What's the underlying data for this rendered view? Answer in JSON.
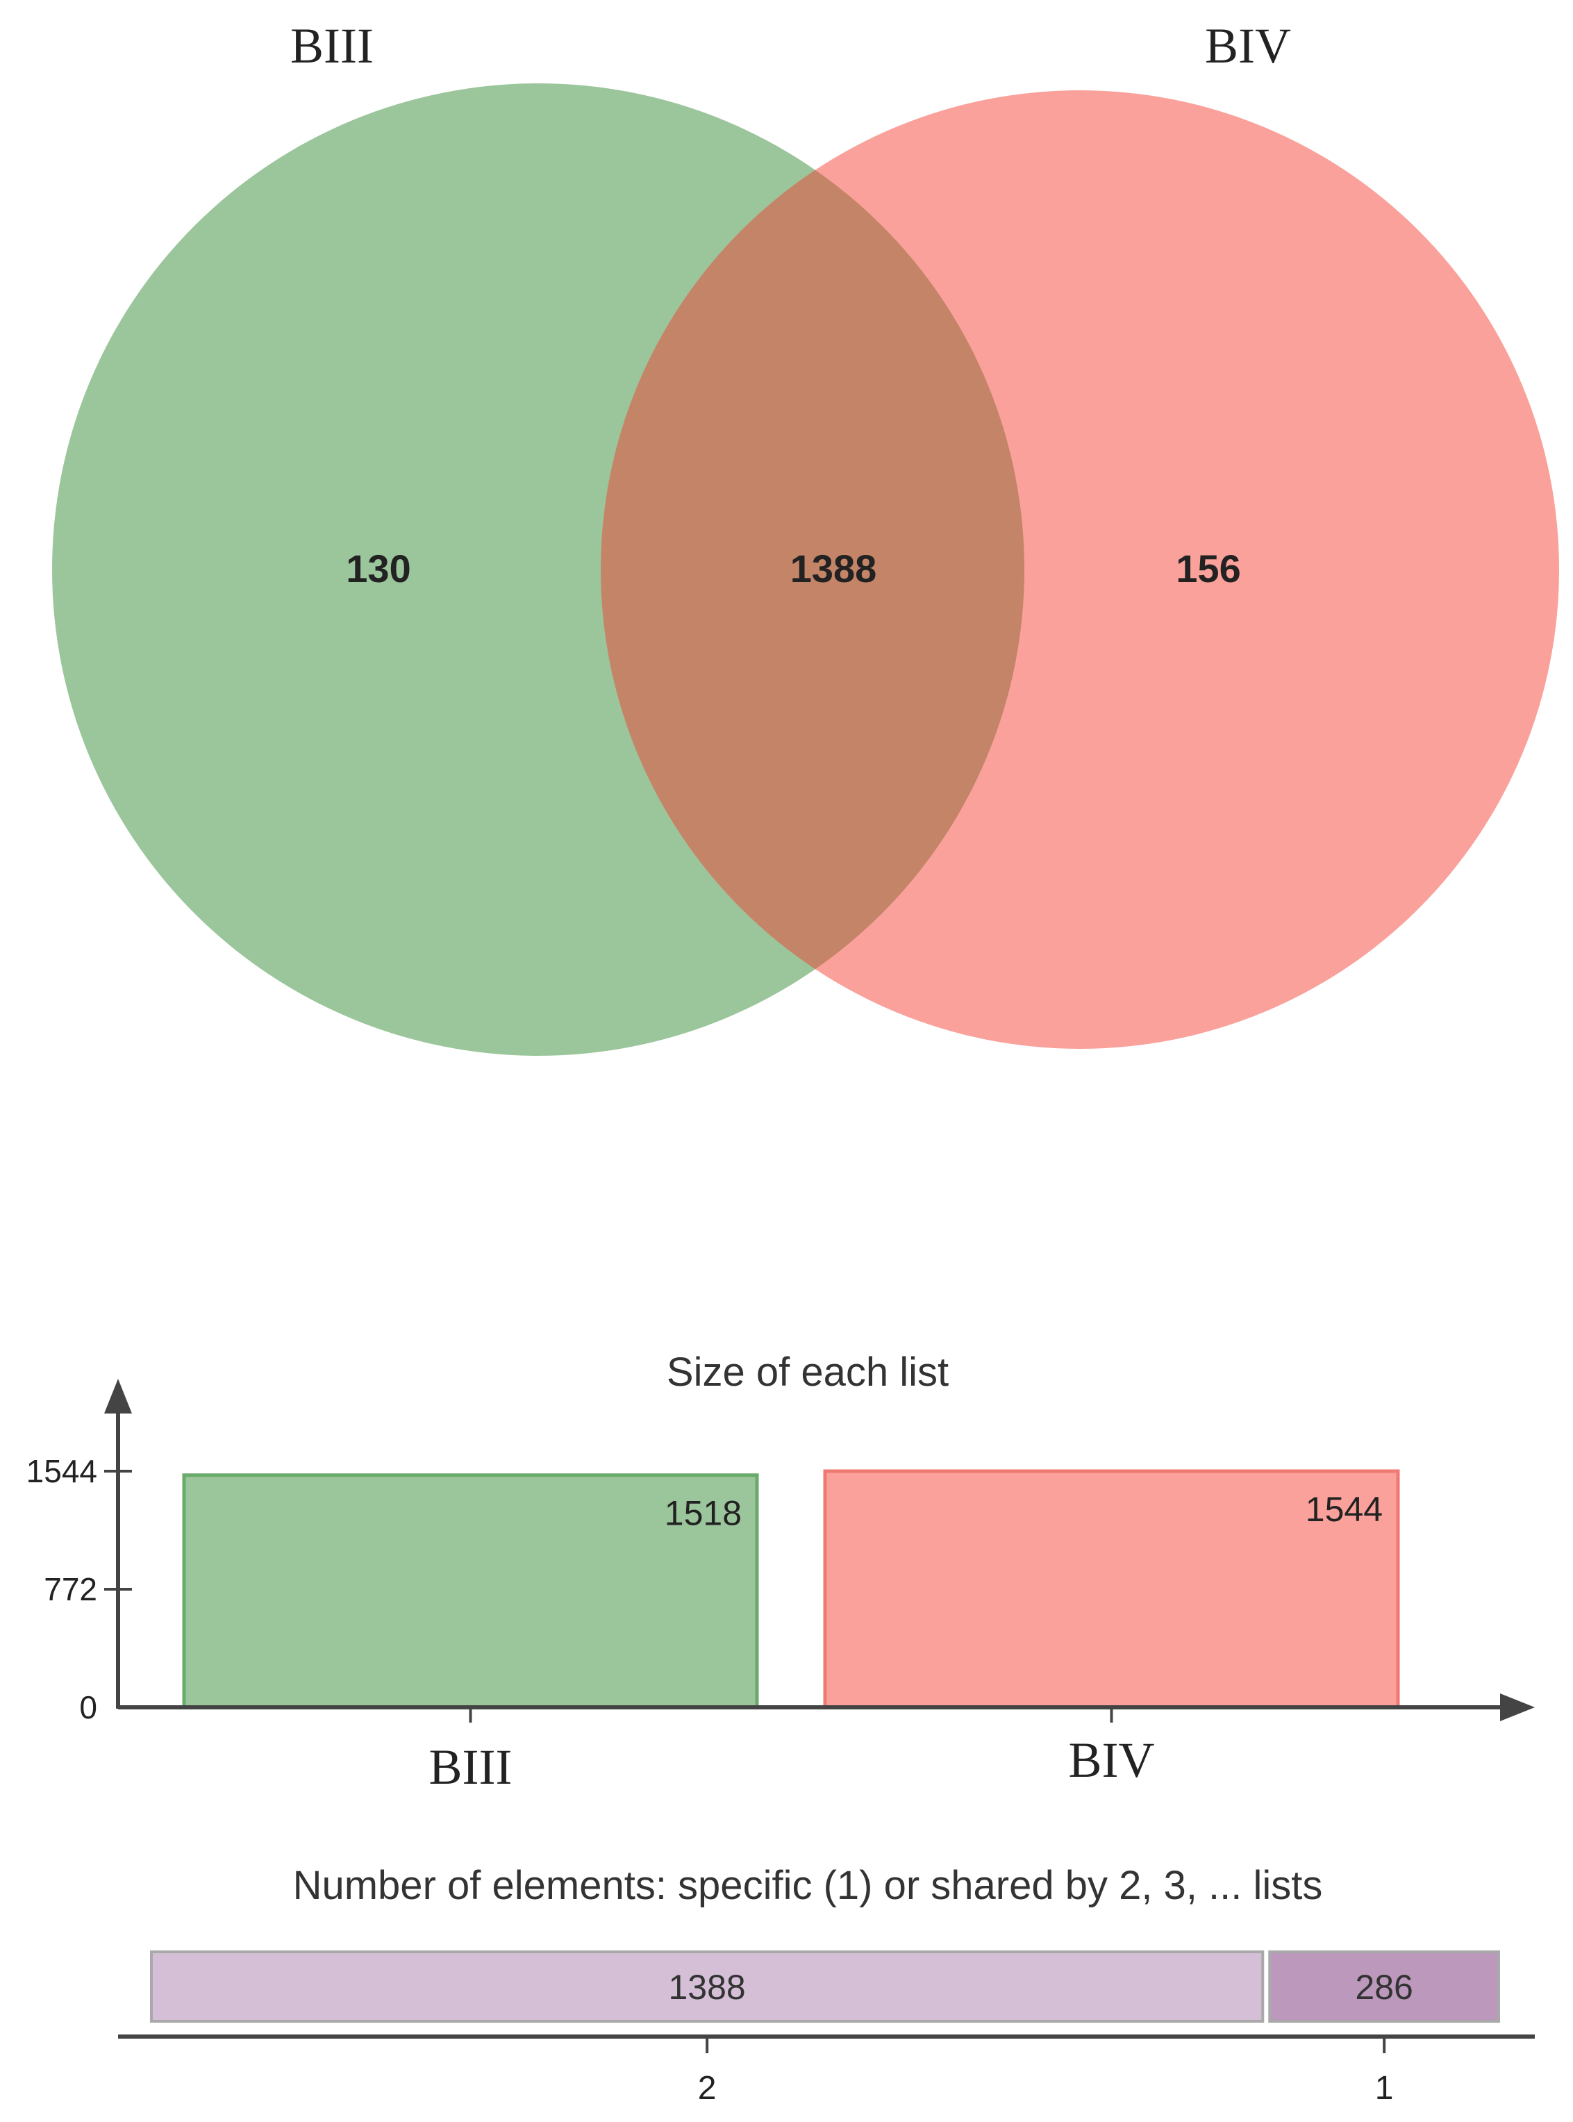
{
  "colors": {
    "set_a": "#9bc59b",
    "set_b": "#f9a19a",
    "overlap": "#c48468",
    "bar_a_stroke": "#6aaa6a",
    "bar_b_stroke": "#f07a72",
    "shared_2": "#d4bfd6",
    "shared_1": "#bb98bc",
    "axis": "#444444",
    "text": "#222222"
  },
  "chart_data": [
    {
      "type": "venn",
      "sets": [
        {
          "name": "BIII",
          "only": "130"
        },
        {
          "name": "BIV",
          "only": "156"
        }
      ],
      "intersection": "1388"
    },
    {
      "type": "bar",
      "title": "Size of each list",
      "categories": [
        "BIII",
        "BIV"
      ],
      "values": [
        1518,
        1544
      ],
      "value_labels": [
        "1518",
        "1544"
      ],
      "yticks": [
        "1544",
        "772",
        "0"
      ],
      "ytick_values": [
        1544,
        772,
        0
      ],
      "ylim": [
        0,
        1544
      ]
    },
    {
      "type": "bar",
      "orientation": "horizontal-stacked",
      "title": "Number of elements: specific (1) or shared by 2, 3, ... lists",
      "categories": [
        "2",
        "1"
      ],
      "values": [
        1388,
        286
      ],
      "value_labels": [
        "1388",
        "286"
      ]
    }
  ]
}
